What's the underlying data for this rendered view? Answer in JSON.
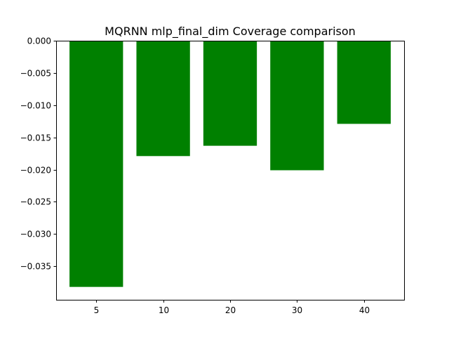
{
  "chart_data": {
    "type": "bar",
    "title": "MQRNN mlp_final_dim Coverage comparison",
    "xlabel": "",
    "ylabel": "",
    "categories": [
      "5",
      "10",
      "20",
      "30",
      "40"
    ],
    "values": [
      -0.0382,
      -0.0179,
      -0.0163,
      -0.0201,
      -0.0129
    ],
    "ylim": [
      -0.0402,
      0.0
    ],
    "yticks": [
      0.0,
      -0.005,
      -0.01,
      -0.015,
      -0.02,
      -0.025,
      -0.03,
      -0.035
    ],
    "ytick_labels": [
      "0.000",
      "−0.005",
      "−0.010",
      "−0.015",
      "−0.020",
      "−0.025",
      "−0.030",
      "−0.035"
    ],
    "bar_color": "#008000",
    "grid": false,
    "legend": "none"
  }
}
